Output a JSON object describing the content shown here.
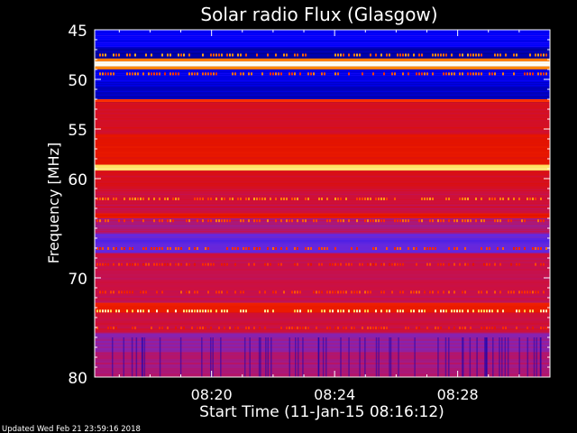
{
  "chart_data": {
    "type": "heatmap",
    "title": "Solar radio Flux (Glasgow)",
    "ylabel": "Frequency [MHz]",
    "xlabel": "Start Time (11-Jan-15 08:16:12)",
    "footer": "Updated Wed Feb 21 23:59:16 2018",
    "y_axis": {
      "ylim": [
        45,
        80
      ],
      "ticks": [
        "45",
        "50",
        "55",
        "60",
        "70",
        "80"
      ],
      "tick_values": [
        45,
        50,
        55,
        60,
        70,
        80
      ]
    },
    "x_axis": {
      "ticks": [
        "08:20",
        "08:24",
        "08:28"
      ],
      "tick_minutes": [
        20,
        24,
        28
      ],
      "xlim_minutes": [
        16.2,
        31.0
      ]
    },
    "colormap": [
      "#000080",
      "#0000ff",
      "#6a2adc",
      "#c8104a",
      "#e01000",
      "#ff3000",
      "#ff9a10",
      "#ffe060",
      "#ffffff"
    ],
    "bands": [
      {
        "f0": 45.0,
        "f1": 46.8,
        "level": 0.12
      },
      {
        "f0": 46.8,
        "f1": 47.9,
        "level": 0.04
      },
      {
        "f0": 47.9,
        "f1": 48.2,
        "level": 0.7
      },
      {
        "f0": 48.2,
        "f1": 48.7,
        "level": 1.0
      },
      {
        "f0": 48.7,
        "f1": 49.0,
        "level": 0.72
      },
      {
        "f0": 49.0,
        "f1": 50.8,
        "level": 0.1
      },
      {
        "f0": 50.8,
        "f1": 52.0,
        "level": 0.06
      },
      {
        "f0": 52.0,
        "f1": 52.3,
        "level": 0.6
      },
      {
        "f0": 52.3,
        "f1": 55.5,
        "level": 0.44
      },
      {
        "f0": 55.5,
        "f1": 58.6,
        "level": 0.52
      },
      {
        "f0": 58.6,
        "f1": 59.2,
        "level": 0.88
      },
      {
        "f0": 59.2,
        "f1": 61.0,
        "level": 0.45
      },
      {
        "f0": 61.0,
        "f1": 63.5,
        "level": 0.4
      },
      {
        "f0": 63.5,
        "f1": 64.0,
        "level": 0.52
      },
      {
        "f0": 64.0,
        "f1": 65.5,
        "level": 0.34
      },
      {
        "f0": 65.5,
        "f1": 67.5,
        "level": 0.24
      },
      {
        "f0": 67.5,
        "f1": 72.5,
        "level": 0.38
      },
      {
        "f0": 72.5,
        "f1": 73.5,
        "level": 0.56
      },
      {
        "f0": 73.5,
        "f1": 75.5,
        "level": 0.4
      },
      {
        "f0": 75.5,
        "f1": 77.5,
        "level": 0.3
      },
      {
        "f0": 77.5,
        "f1": 80.0,
        "level": 0.34
      }
    ],
    "dotted_lines": [
      {
        "f": 47.5,
        "level": 0.72
      },
      {
        "f": 49.4,
        "level": 0.66
      },
      {
        "f": 62.0,
        "level": 0.7
      },
      {
        "f": 64.2,
        "level": 0.66
      },
      {
        "f": 67.0,
        "level": 0.62
      },
      {
        "f": 68.6,
        "level": 0.58
      },
      {
        "f": 71.4,
        "level": 0.62
      },
      {
        "f": 73.3,
        "level": 0.9
      },
      {
        "f": 75.0,
        "level": 0.58
      }
    ]
  }
}
